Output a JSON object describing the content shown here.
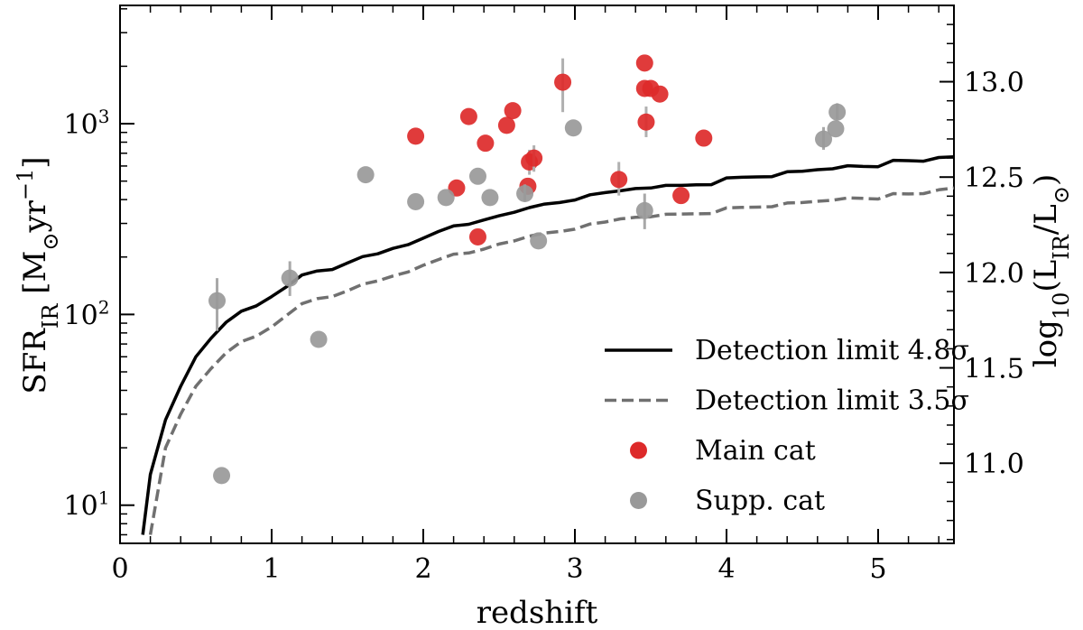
{
  "chart_data": {
    "type": "scatter",
    "xlabel": "redshift",
    "ylabel_left": {
      "base": "SFR",
      "sub": "IR",
      "unit_open": " [M",
      "unit_sun": "⊙",
      "unit_mid": "yr",
      "unit_sup": "−1",
      "unit_close": "]"
    },
    "ylabel_right": {
      "base": "log",
      "sub": "10",
      "open": "(L",
      "sub2": "IR",
      "mid": "/L",
      "sun": "⊙",
      "close": ")"
    },
    "xlim": [
      0,
      5.5
    ],
    "ylim_log10": [
      0.8,
      3.62
    ],
    "ylim_right": [
      10.58,
      13.4
    ],
    "x_ticks": [
      {
        "v": 0,
        "label": "0"
      },
      {
        "v": 1,
        "label": "1"
      },
      {
        "v": 2,
        "label": "2"
      },
      {
        "v": 3,
        "label": "3"
      },
      {
        "v": 4,
        "label": "4"
      },
      {
        "v": 5,
        "label": "5"
      }
    ],
    "y_ticks": [
      {
        "exp": 1,
        "label_base": "10",
        "label_exp": "1"
      },
      {
        "exp": 2,
        "label_base": "10",
        "label_exp": "2"
      },
      {
        "exp": 3,
        "label_base": "10",
        "label_exp": "3"
      }
    ],
    "y_right_ticks": [
      {
        "v": 11.0,
        "label": "11.0"
      },
      {
        "v": 11.5,
        "label": "11.5"
      },
      {
        "v": 12.0,
        "label": "12.0"
      },
      {
        "v": 12.5,
        "label": "12.5"
      },
      {
        "v": 13.0,
        "label": "13.0"
      }
    ],
    "legend": [
      {
        "key": "det48",
        "label": "Detection limit 4.8σ"
      },
      {
        "key": "det35",
        "label": "Detection limit 3.5σ"
      },
      {
        "key": "main",
        "label": "Main cat"
      },
      {
        "key": "supp",
        "label": "Supp. cat"
      }
    ],
    "series": [
      {
        "name": "Detection limit 4.8σ",
        "key": "det48",
        "kind": "line",
        "color": "#000000",
        "dash": "solid",
        "x": [
          0.15,
          0.2,
          0.3,
          0.4,
          0.5,
          0.6,
          0.7,
          0.8,
          0.9,
          1.0,
          1.1,
          1.2,
          1.3,
          1.4,
          1.5,
          1.6,
          1.7,
          1.8,
          1.9,
          2.0,
          2.1,
          2.2,
          2.3,
          2.4,
          2.5,
          2.6,
          2.7,
          2.8,
          2.9,
          3.0,
          3.1,
          3.2,
          3.3,
          3.4,
          3.5,
          3.6,
          3.7,
          3.8,
          3.9,
          4.0,
          4.1,
          4.2,
          4.3,
          4.4,
          4.5,
          4.6,
          4.7,
          4.8,
          4.9,
          5.0,
          5.1,
          5.2,
          5.3,
          5.4,
          5.5
        ],
        "y": [
          7,
          14.5,
          28,
          42,
          60,
          75,
          91,
          104,
          111,
          124,
          140,
          161,
          169,
          172,
          186,
          201,
          208,
          222,
          232,
          251,
          272,
          291,
          297,
          313,
          329,
          343,
          363,
          379,
          386,
          398,
          424,
          435,
          445,
          457,
          460,
          475,
          475,
          478,
          479,
          520,
          524,
          526,
          528,
          560,
          563,
          574,
          580,
          602,
          597,
          595,
          643,
          640,
          636,
          665,
          670
        ]
      },
      {
        "name": "Detection limit 3.5σ",
        "key": "det35",
        "kind": "line",
        "color": "#707070",
        "dash": "dashed",
        "x": [
          0.2,
          0.3,
          0.4,
          0.5,
          0.6,
          0.7,
          0.8,
          0.9,
          1.0,
          1.1,
          1.2,
          1.3,
          1.4,
          1.5,
          1.6,
          1.7,
          1.8,
          1.9,
          2.0,
          2.1,
          2.2,
          2.3,
          2.4,
          2.5,
          2.6,
          2.7,
          2.8,
          2.9,
          3.0,
          3.1,
          3.2,
          3.3,
          3.4,
          3.5,
          3.6,
          3.7,
          3.8,
          3.9,
          4.0,
          4.1,
          4.2,
          4.3,
          4.4,
          4.5,
          4.6,
          4.7,
          4.8,
          4.9,
          5.0,
          5.1,
          5.2,
          5.3,
          5.4,
          5.5
        ],
        "y": [
          7,
          20,
          30,
          42,
          52,
          63,
          72,
          77,
          86,
          99,
          114,
          121,
          124,
          133,
          144,
          150,
          159,
          167,
          181,
          194,
          207,
          210,
          220,
          234,
          243,
          257,
          267,
          272,
          280,
          298,
          305,
          317,
          323,
          325,
          335,
          336,
          337,
          338,
          362,
          364,
          365,
          367,
          384,
          386,
          392,
          397,
          408,
          406,
          403,
          430,
          428,
          430,
          450,
          460
        ]
      },
      {
        "name": "Main cat",
        "key": "main",
        "kind": "points",
        "color": "#dd2a2a",
        "points": [
          {
            "x": 1.95,
            "y": 860
          },
          {
            "x": 2.22,
            "y": 460
          },
          {
            "x": 2.3,
            "y": 1090
          },
          {
            "x": 2.36,
            "y": 255
          },
          {
            "x": 2.41,
            "y": 790
          },
          {
            "x": 2.55,
            "y": 980
          },
          {
            "x": 2.59,
            "y": 1170
          },
          {
            "x": 2.69,
            "y": 470
          },
          {
            "x": 2.7,
            "y": 630,
            "err": [
              540,
              730
            ]
          },
          {
            "x": 2.73,
            "y": 660,
            "err": [
              560,
              770
            ]
          },
          {
            "x": 2.92,
            "y": 1650,
            "err": [
              1150,
              2200
            ]
          },
          {
            "x": 3.29,
            "y": 510,
            "err": [
              420,
              630
            ]
          },
          {
            "x": 3.46,
            "y": 2080
          },
          {
            "x": 3.46,
            "y": 1530
          },
          {
            "x": 3.47,
            "y": 1020,
            "err": [
              850,
              1230
            ]
          },
          {
            "x": 3.5,
            "y": 1530
          },
          {
            "x": 3.56,
            "y": 1430
          },
          {
            "x": 3.7,
            "y": 420
          },
          {
            "x": 3.85,
            "y": 840
          }
        ]
      },
      {
        "name": "Supp. cat",
        "key": "supp",
        "kind": "points",
        "color": "#999999",
        "points": [
          {
            "x": 0.64,
            "y": 118,
            "err": [
              82,
              155
            ]
          },
          {
            "x": 0.67,
            "y": 14.3
          },
          {
            "x": 1.12,
            "y": 155,
            "err": [
              125,
              190
            ]
          },
          {
            "x": 1.31,
            "y": 74
          },
          {
            "x": 1.62,
            "y": 540
          },
          {
            "x": 1.95,
            "y": 390
          },
          {
            "x": 2.15,
            "y": 410
          },
          {
            "x": 2.36,
            "y": 530
          },
          {
            "x": 2.44,
            "y": 410
          },
          {
            "x": 2.67,
            "y": 430,
            "err": [
              390,
              480
            ]
          },
          {
            "x": 2.76,
            "y": 243
          },
          {
            "x": 2.99,
            "y": 950
          },
          {
            "x": 3.46,
            "y": 350,
            "err": [
              280,
              430
            ]
          },
          {
            "x": 4.64,
            "y": 830,
            "err": [
              730,
              960
            ]
          },
          {
            "x": 4.72,
            "y": 940
          },
          {
            "x": 4.73,
            "y": 1150,
            "err": [
              1050,
              1280
            ]
          }
        ]
      }
    ]
  }
}
